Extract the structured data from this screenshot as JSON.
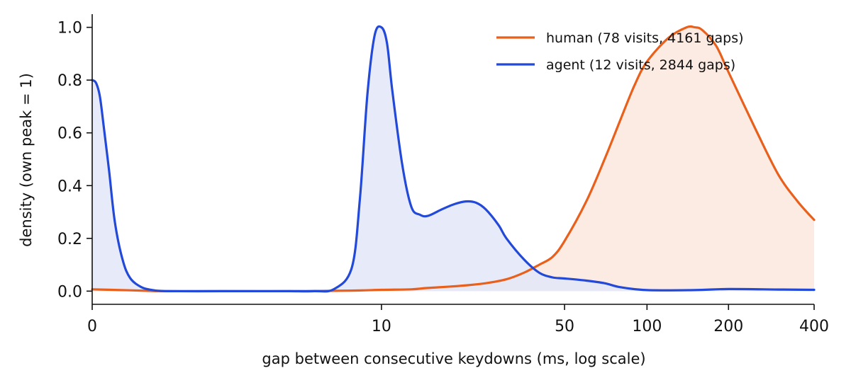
{
  "chart_data": {
    "type": "area",
    "title": "",
    "xlabel": "gap between consecutive keydowns (ms, log scale)",
    "ylabel": "density (own peak = 1)",
    "x_scale": "symlog",
    "xlim": [
      0,
      400
    ],
    "ylim": [
      -0.05,
      1.05
    ],
    "x_ticks": [
      0,
      10,
      50,
      100,
      200,
      400
    ],
    "x_tick_labels": [
      "0",
      "10",
      "50",
      "100",
      "200",
      "400"
    ],
    "y_ticks": [
      0.0,
      0.2,
      0.4,
      0.6,
      0.8,
      1.0
    ],
    "y_tick_labels": [
      "0.0",
      "0.2",
      "0.4",
      "0.6",
      "0.8",
      "1.0"
    ],
    "grid": false,
    "legend_position": "top-right",
    "series": [
      {
        "name": "human (78 visits, 4161 gaps)",
        "color": "#e8601c",
        "fill": "#fbe8dd",
        "x": [
          0,
          0.5,
          1,
          1.5,
          2,
          3,
          5,
          8,
          10,
          13,
          15,
          20,
          25,
          30,
          35,
          40,
          45,
          50,
          60,
          70,
          80,
          90,
          100,
          120,
          140,
          150,
          160,
          180,
          200,
          250,
          300,
          350,
          400
        ],
        "y": [
          0.007,
          0.005,
          0.003,
          0.001,
          0.0,
          0.0,
          0.0,
          0.002,
          0.005,
          0.007,
          0.012,
          0.02,
          0.03,
          0.045,
          0.07,
          0.1,
          0.13,
          0.19,
          0.34,
          0.5,
          0.65,
          0.78,
          0.87,
          0.96,
          1.0,
          1.0,
          0.99,
          0.93,
          0.83,
          0.61,
          0.44,
          0.34,
          0.27
        ]
      },
      {
        "name": "agent (12 visits, 2844 gaps)",
        "color": "#2249d8",
        "fill": "#e3e8f8",
        "x": [
          0,
          0.1,
          0.2,
          0.3,
          0.45,
          0.6,
          0.8,
          1.0,
          1.3,
          1.6,
          2,
          3,
          4,
          5,
          6,
          7,
          8,
          8.5,
          9,
          9.5,
          10,
          10.5,
          11,
          12,
          13,
          14,
          15,
          17,
          19,
          21,
          23,
          25,
          28,
          30,
          35,
          40,
          45,
          50,
          60,
          70,
          80,
          100,
          150,
          200,
          300,
          400
        ],
        "y": [
          0.8,
          0.79,
          0.74,
          0.63,
          0.45,
          0.26,
          0.12,
          0.05,
          0.015,
          0.004,
          0.0,
          0.0,
          0.0,
          0.0,
          0.0,
          0.008,
          0.09,
          0.35,
          0.75,
          0.97,
          1.0,
          0.94,
          0.76,
          0.48,
          0.32,
          0.29,
          0.285,
          0.31,
          0.33,
          0.34,
          0.335,
          0.31,
          0.25,
          0.2,
          0.12,
          0.07,
          0.052,
          0.048,
          0.04,
          0.03,
          0.015,
          0.004,
          0.004,
          0.008,
          0.006,
          0.005
        ]
      }
    ]
  }
}
